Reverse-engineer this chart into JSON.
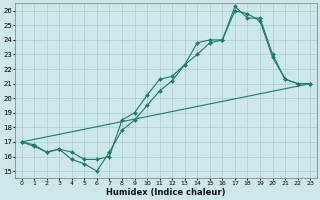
{
  "xlabel": "Humidex (Indice chaleur)",
  "xlim": [
    -0.5,
    23.5
  ],
  "ylim": [
    14.5,
    26.5
  ],
  "yticks": [
    15,
    16,
    17,
    18,
    19,
    20,
    21,
    22,
    23,
    24,
    25,
    26
  ],
  "xticks": [
    0,
    1,
    2,
    3,
    4,
    5,
    6,
    7,
    8,
    9,
    10,
    11,
    12,
    13,
    14,
    15,
    16,
    17,
    18,
    19,
    20,
    21,
    22,
    23
  ],
  "bg_color": "#cce8e8",
  "line_color": "#1a7a6e",
  "grid_color": "#aacece",
  "line1_x": [
    0,
    1,
    2,
    3,
    4,
    5,
    6,
    7,
    8,
    9,
    10,
    11,
    12,
    13,
    14,
    15,
    16,
    17,
    18,
    19,
    20,
    21,
    22,
    23
  ],
  "line1_y": [
    17.0,
    16.7,
    16.3,
    16.5,
    15.8,
    15.5,
    15.0,
    16.3,
    17.8,
    18.5,
    19.5,
    20.5,
    21.2,
    22.3,
    23.0,
    23.8,
    24.0,
    26.3,
    25.5,
    25.5,
    23.0,
    21.3,
    21.0,
    21.0
  ],
  "line2_x": [
    0,
    1,
    2,
    3,
    4,
    5,
    6,
    7,
    8,
    9,
    10,
    11,
    12,
    13,
    14,
    15,
    16,
    17,
    18,
    19,
    20,
    21,
    22,
    23
  ],
  "line2_y": [
    17.0,
    16.8,
    16.3,
    16.5,
    16.3,
    15.8,
    15.8,
    16.0,
    18.5,
    19.0,
    20.2,
    21.3,
    21.5,
    22.3,
    23.8,
    24.0,
    24.0,
    26.0,
    25.8,
    25.3,
    22.8,
    21.3,
    21.0,
    21.0
  ],
  "line3_x": [
    0,
    23
  ],
  "line3_y": [
    17.0,
    21.0
  ],
  "marker": "D",
  "marker_size": 2.0,
  "lw": 0.8
}
